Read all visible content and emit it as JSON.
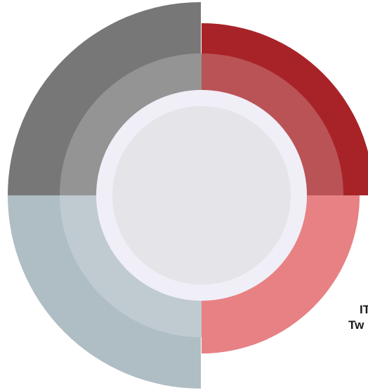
{
  "segments": [
    {
      "id": "top-left",
      "color": "#777777",
      "inner_color": "#949494"
    },
    {
      "id": "top-right",
      "color": "#A82328",
      "inner_color": "#BA5356"
    },
    {
      "id": "bottom-right",
      "color": "#E78184",
      "inner_color": "#E78184"
    },
    {
      "id": "bottom-left",
      "color": "#AFBDC4",
      "inner_color": "#BFCBD0"
    }
  ],
  "center": {
    "ring_color": "#F0EEF6",
    "disc_color": "#E5E4E9"
  },
  "captions": [
    "IT",
    "Tw"
  ]
}
